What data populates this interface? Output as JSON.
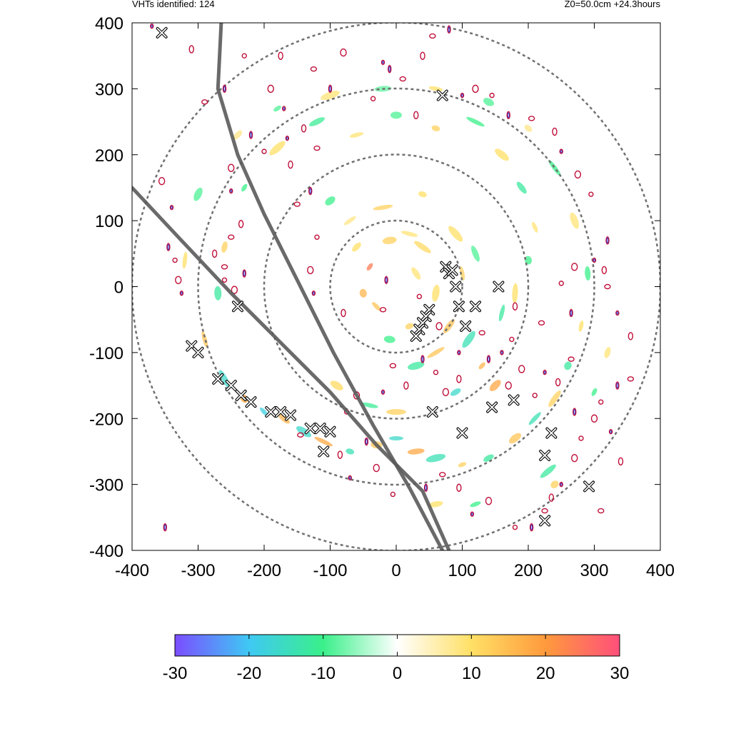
{
  "header": {
    "vht_count_label": "VHTs identified: 124",
    "run_info": "Z0=50.0cm  +24.3hours"
  },
  "chart_data": {
    "type": "heatmap",
    "title": "",
    "xlabel": "",
    "ylabel": "",
    "xlim": [
      -400,
      400
    ],
    "ylim": [
      -400,
      400
    ],
    "x_ticks": [
      "-400",
      "-300",
      "-200",
      "-100",
      "0",
      "100",
      "200",
      "300",
      "400"
    ],
    "y_ticks": [
      "400",
      "300",
      "200",
      "100",
      "0",
      "-100",
      "-200",
      "-300",
      "-400"
    ],
    "range_rings": [
      100,
      200,
      300,
      400
    ],
    "grid": false,
    "colorbar": {
      "range": [
        -30,
        30
      ],
      "ticks": [
        "-30",
        "-20",
        "-10",
        "0",
        "10",
        "20",
        "30"
      ],
      "colors": [
        "#7b4dff",
        "#3fc8f4",
        "#3af08a",
        "#ffffff",
        "#ffe066",
        "#ff9a3c",
        "#ff4f7b"
      ]
    },
    "tracks": [
      {
        "points": [
          [
            -400,
            150
          ],
          [
            -330,
            75
          ],
          [
            -250,
            -10
          ],
          [
            -170,
            -90
          ],
          [
            -100,
            -160
          ],
          [
            -30,
            -240
          ],
          [
            40,
            -310
          ],
          [
            80,
            -400
          ]
        ]
      },
      {
        "points": [
          [
            -265,
            400
          ],
          [
            -270,
            300
          ],
          [
            -240,
            200
          ],
          [
            -200,
            110
          ],
          [
            -150,
            10
          ],
          [
            -95,
            -100
          ],
          [
            -35,
            -210
          ],
          [
            20,
            -305
          ],
          [
            70,
            -400
          ]
        ]
      }
    ],
    "vht_markers": [
      [
        -355,
        385
      ],
      [
        70,
        290
      ],
      [
        75,
        30
      ],
      [
        80,
        20
      ],
      [
        85,
        25
      ],
      [
        90,
        0
      ],
      [
        95,
        -30
      ],
      [
        120,
        -30
      ],
      [
        155,
        0
      ],
      [
        105,
        -60
      ],
      [
        50,
        -35
      ],
      [
        45,
        -45
      ],
      [
        40,
        -55
      ],
      [
        35,
        -65
      ],
      [
        30,
        -75
      ],
      [
        -240,
        -30
      ],
      [
        -310,
        -90
      ],
      [
        -300,
        -100
      ],
      [
        -270,
        -140
      ],
      [
        -250,
        -150
      ],
      [
        -235,
        -165
      ],
      [
        -220,
        -175
      ],
      [
        -190,
        -190
      ],
      [
        -175,
        -190
      ],
      [
        -160,
        -195
      ],
      [
        -130,
        -215
      ],
      [
        -115,
        -215
      ],
      [
        -100,
        -220
      ],
      [
        -110,
        -250
      ],
      [
        55,
        -190
      ],
      [
        100,
        -222
      ],
      [
        145,
        -183
      ],
      [
        178,
        -172
      ],
      [
        235,
        -222
      ],
      [
        225,
        -256
      ],
      [
        292,
        -303
      ],
      [
        225,
        -355
      ]
    ],
    "vortex_contours": [
      [
        -370,
        395
      ],
      [
        -310,
        360
      ],
      [
        -290,
        280
      ],
      [
        -260,
        300
      ],
      [
        -230,
        350
      ],
      [
        -190,
        300
      ],
      [
        -170,
        270
      ],
      [
        -140,
        240
      ],
      [
        -120,
        210
      ],
      [
        -220,
        230
      ],
      [
        -200,
        205
      ],
      [
        -250,
        180
      ],
      [
        -250,
        145
      ],
      [
        -235,
        95
      ],
      [
        -250,
        75
      ],
      [
        -345,
        60
      ],
      [
        -335,
        40
      ],
      [
        -330,
        10
      ],
      [
        -325,
        -10
      ],
      [
        -275,
        50
      ],
      [
        -260,
        30
      ],
      [
        -230,
        20
      ],
      [
        -260,
        10
      ],
      [
        -245,
        -5
      ],
      [
        -165,
        225
      ],
      [
        -160,
        185
      ],
      [
        -150,
        125
      ],
      [
        -130,
        145
      ],
      [
        -120,
        75
      ],
      [
        -130,
        25
      ],
      [
        -125,
        -10
      ],
      [
        -80,
        -40
      ],
      [
        -20,
        -35
      ],
      [
        -15,
        10
      ],
      [
        35,
        -15
      ],
      [
        65,
        -60
      ],
      [
        95,
        -100
      ],
      [
        95,
        -140
      ],
      [
        130,
        -70
      ],
      [
        140,
        -110
      ],
      [
        175,
        -80
      ],
      [
        190,
        -125
      ],
      [
        225,
        -130
      ],
      [
        245,
        -145
      ],
      [
        265,
        -110
      ],
      [
        270,
        -190
      ],
      [
        210,
        -165
      ],
      [
        170,
        -150
      ],
      [
        160,
        -100
      ],
      [
        180,
        -30
      ],
      [
        220,
        -55
      ],
      [
        265,
        -40
      ],
      [
        250,
        5
      ],
      [
        270,
        30
      ],
      [
        300,
        40
      ],
      [
        315,
        25
      ],
      [
        320,
        0
      ],
      [
        320,
        70
      ],
      [
        295,
        140
      ],
      [
        275,
        170
      ],
      [
        250,
        205
      ],
      [
        240,
        235
      ],
      [
        205,
        255
      ],
      [
        170,
        260
      ],
      [
        145,
        290
      ],
      [
        120,
        300
      ],
      [
        100,
        290
      ],
      [
        30,
        260
      ],
      [
        10,
        315
      ],
      [
        -10,
        330
      ],
      [
        -35,
        285
      ],
      [
        -80,
        355
      ],
      [
        -20,
        340
      ],
      [
        40,
        350
      ],
      [
        55,
        380
      ],
      [
        80,
        390
      ],
      [
        280,
        -230
      ],
      [
        270,
        -260
      ],
      [
        250,
        -300
      ],
      [
        235,
        -320
      ],
      [
        225,
        -340
      ],
      [
        205,
        -365
      ],
      [
        180,
        -365
      ],
      [
        140,
        -325
      ],
      [
        115,
        -345
      ],
      [
        95,
        -305
      ],
      [
        70,
        -285
      ],
      [
        45,
        -305
      ],
      [
        -5,
        -315
      ],
      [
        -30,
        -275
      ],
      [
        -70,
        -290
      ],
      [
        -85,
        -255
      ],
      [
        -145,
        -225
      ],
      [
        -45,
        -235
      ],
      [
        -75,
        -190
      ],
      [
        -60,
        -165
      ],
      [
        -20,
        -160
      ],
      [
        15,
        -150
      ],
      [
        -5,
        -120
      ],
      [
        40,
        -110
      ],
      [
        60,
        -130
      ],
      [
        75,
        -160
      ],
      [
        335,
        -40
      ],
      [
        355,
        -75
      ],
      [
        355,
        -140
      ],
      [
        335,
        -150
      ],
      [
        310,
        -175
      ],
      [
        300,
        -200
      ],
      [
        325,
        -220
      ],
      [
        340,
        -265
      ],
      [
        310,
        -340
      ],
      [
        -350,
        -365
      ],
      [
        -410,
        170
      ],
      [
        -355,
        160
      ],
      [
        -340,
        120
      ],
      [
        -175,
        350
      ],
      [
        -125,
        330
      ],
      [
        -100,
        300
      ]
    ],
    "anomaly_blobs": [
      {
        "x": -40,
        "y": 30,
        "v": 24
      },
      {
        "x": -60,
        "y": 60,
        "v": 10
      },
      {
        "x": -10,
        "y": 70,
        "v": 12
      },
      {
        "x": 20,
        "y": 80,
        "v": 9
      },
      {
        "x": 40,
        "y": 60,
        "v": 11
      },
      {
        "x": -50,
        "y": -10,
        "v": 16
      },
      {
        "x": -30,
        "y": -30,
        "v": 14
      },
      {
        "x": 30,
        "y": 20,
        "v": 9
      },
      {
        "x": 60,
        "y": -10,
        "v": 10
      },
      {
        "x": -20,
        "y": 120,
        "v": 12
      },
      {
        "x": 40,
        "y": 140,
        "v": 10
      },
      {
        "x": -100,
        "y": 130,
        "v": -10
      },
      {
        "x": -70,
        "y": 100,
        "v": 8
      },
      {
        "x": 80,
        "y": -60,
        "v": 14
      },
      {
        "x": 110,
        "y": -80,
        "v": -14
      },
      {
        "x": 130,
        "y": -120,
        "v": 16
      },
      {
        "x": 90,
        "y": -160,
        "v": -16
      },
      {
        "x": 150,
        "y": -150,
        "v": 18
      },
      {
        "x": 160,
        "y": -40,
        "v": -12
      },
      {
        "x": 180,
        "y": -10,
        "v": 10
      },
      {
        "x": 200,
        "y": 40,
        "v": -10
      },
      {
        "x": 210,
        "y": 90,
        "v": 9
      },
      {
        "x": 190,
        "y": 150,
        "v": -12
      },
      {
        "x": 160,
        "y": 200,
        "v": 10
      },
      {
        "x": 120,
        "y": 250,
        "v": -10
      },
      {
        "x": 60,
        "y": 240,
        "v": 12
      },
      {
        "x": 0,
        "y": 260,
        "v": -9
      },
      {
        "x": -60,
        "y": 230,
        "v": 9
      },
      {
        "x": -120,
        "y": 250,
        "v": -11
      },
      {
        "x": -180,
        "y": 210,
        "v": 10
      },
      {
        "x": -230,
        "y": 150,
        "v": -10
      },
      {
        "x": -260,
        "y": 60,
        "v": 12
      },
      {
        "x": -270,
        "y": -10,
        "v": -12
      },
      {
        "x": -290,
        "y": -80,
        "v": 14
      },
      {
        "x": -260,
        "y": -140,
        "v": -16
      },
      {
        "x": -230,
        "y": -170,
        "v": 18
      },
      {
        "x": -200,
        "y": -190,
        "v": -18
      },
      {
        "x": -170,
        "y": -200,
        "v": 16
      },
      {
        "x": -140,
        "y": -220,
        "v": -16
      },
      {
        "x": -110,
        "y": -235,
        "v": 18
      },
      {
        "x": -70,
        "y": -250,
        "v": -14
      },
      {
        "x": -30,
        "y": -240,
        "v": 14
      },
      {
        "x": 0,
        "y": -230,
        "v": -16
      },
      {
        "x": 30,
        "y": -250,
        "v": 18
      },
      {
        "x": 60,
        "y": -260,
        "v": -14
      },
      {
        "x": 100,
        "y": -270,
        "v": 12
      },
      {
        "x": 140,
        "y": -260,
        "v": -12
      },
      {
        "x": 180,
        "y": -230,
        "v": 14
      },
      {
        "x": 210,
        "y": -200,
        "v": -14
      },
      {
        "x": 240,
        "y": -170,
        "v": 12
      },
      {
        "x": 260,
        "y": -120,
        "v": -12
      },
      {
        "x": 280,
        "y": -60,
        "v": 10
      },
      {
        "x": 290,
        "y": 20,
        "v": -10
      },
      {
        "x": 270,
        "y": 100,
        "v": 9
      },
      {
        "x": 240,
        "y": 180,
        "v": -10
      },
      {
        "x": 200,
        "y": 240,
        "v": 8
      },
      {
        "x": 140,
        "y": 280,
        "v": -9
      },
      {
        "x": 60,
        "y": 300,
        "v": 10
      },
      {
        "x": -20,
        "y": 300,
        "v": -8
      },
      {
        "x": -100,
        "y": 290,
        "v": 9
      },
      {
        "x": -180,
        "y": 270,
        "v": -9
      },
      {
        "x": -240,
        "y": 230,
        "v": 8
      },
      {
        "x": -300,
        "y": 140,
        "v": -9
      },
      {
        "x": -320,
        "y": 40,
        "v": 10
      },
      {
        "x": 230,
        "y": -280,
        "v": -12
      },
      {
        "x": 240,
        "y": -300,
        "v": 12
      },
      {
        "x": 120,
        "y": -330,
        "v": -10
      },
      {
        "x": 60,
        "y": -330,
        "v": 10
      },
      {
        "x": 30,
        "y": -120,
        "v": -12
      },
      {
        "x": 60,
        "y": -100,
        "v": 14
      },
      {
        "x": 20,
        "y": -60,
        "v": 12
      },
      {
        "x": -10,
        "y": -80,
        "v": -10
      },
      {
        "x": 100,
        "y": 20,
        "v": 12
      },
      {
        "x": 120,
        "y": 50,
        "v": -9
      },
      {
        "x": 90,
        "y": 80,
        "v": 10
      },
      {
        "x": 300,
        "y": -160,
        "v": -10
      },
      {
        "x": 320,
        "y": -100,
        "v": 9
      },
      {
        "x": -90,
        "y": -150,
        "v": 11
      },
      {
        "x": -40,
        "y": -180,
        "v": -11
      },
      {
        "x": 0,
        "y": -190,
        "v": 12
      }
    ]
  }
}
